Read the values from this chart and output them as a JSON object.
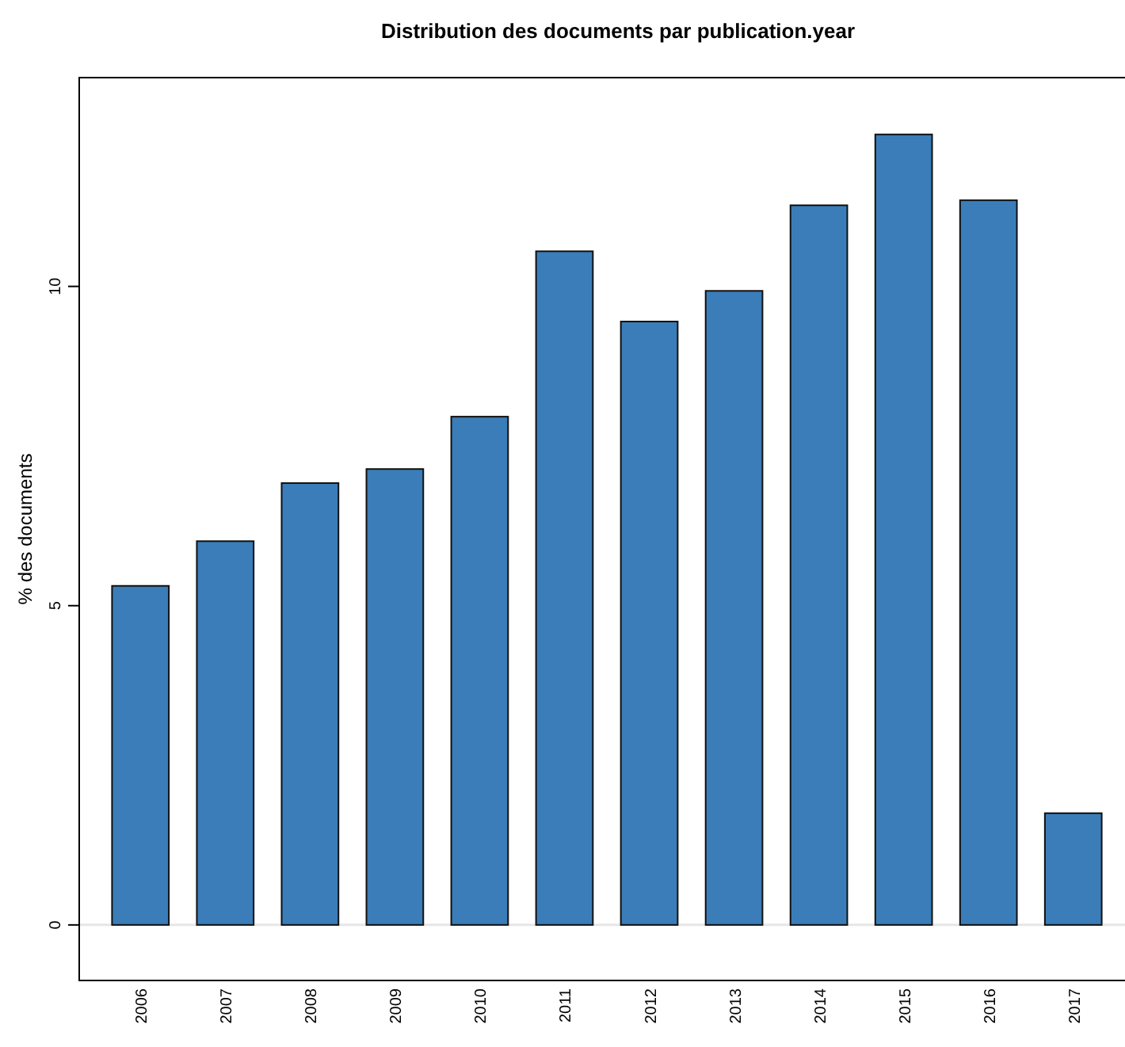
{
  "chart_data": {
    "type": "bar",
    "title": "Distribution des documents par publication.year",
    "ylabel": "% des documents",
    "categories": [
      "2006",
      "2007",
      "2008",
      "2009",
      "2010",
      "2011",
      "2012",
      "2013",
      "2014",
      "2015",
      "2016",
      "2017"
    ],
    "values": [
      5.31,
      6.01,
      6.92,
      7.14,
      7.96,
      10.55,
      9.45,
      9.93,
      11.27,
      12.38,
      11.35,
      1.75
    ],
    "color": "#3a7db8",
    "ylim": [
      -0.87,
      13.27
    ],
    "yticks": [
      0,
      5,
      10
    ],
    "ref_lines": [
      {
        "axis": "y",
        "value": 0,
        "color": "#e6e6e6"
      }
    ],
    "grid": false
  }
}
